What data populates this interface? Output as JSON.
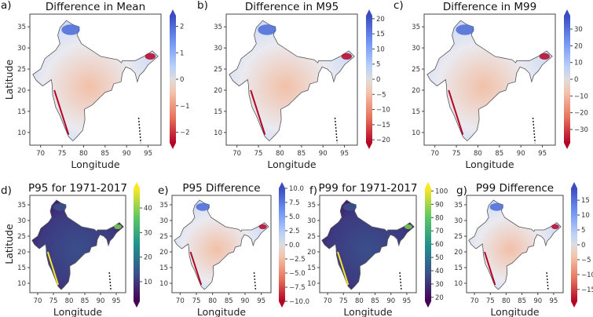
{
  "figure": {
    "x_axis_label": "Longitude",
    "y_axis_label": "Latitude",
    "lon_ticks": [
      70,
      75,
      80,
      85,
      90,
      95
    ],
    "lat_ticks": [
      10,
      15,
      20,
      25,
      30,
      35
    ],
    "lon_range": [
      67.5,
      98
    ],
    "lat_range": [
      7,
      38
    ]
  },
  "chart_data": [
    {
      "type": "heatmap",
      "panel": "a)",
      "title": "Difference in Mean",
      "colormap": "coolwarm_r",
      "clim": [
        -2.4,
        2.4
      ],
      "cbar_ticks": [
        -2,
        -1,
        0,
        1,
        2
      ],
      "cbar_labels": [
        "−2",
        "−1",
        "0",
        "1",
        "2"
      ],
      "show_ylabel": true,
      "show_xlabel": true
    },
    {
      "type": "heatmap",
      "panel": "b)",
      "title": "Difference in M95",
      "colormap": "coolwarm_r",
      "clim": [
        -21,
        21
      ],
      "cbar_ticks": [
        -20,
        -15,
        -10,
        -5,
        0,
        5,
        10,
        15,
        20
      ],
      "cbar_labels": [
        "−20",
        "−15",
        "−10",
        "−5",
        "0",
        "5",
        "10",
        "15",
        "20"
      ],
      "show_ylabel": false,
      "show_xlabel": true
    },
    {
      "type": "heatmap",
      "panel": "c)",
      "title": "Difference in M99",
      "colormap": "coolwarm_r",
      "clim": [
        -38,
        38
      ],
      "cbar_ticks": [
        -30,
        -20,
        -10,
        0,
        10,
        20,
        30
      ],
      "cbar_labels": [
        "−30",
        "−20",
        "−10",
        "0",
        "10",
        "20",
        "30"
      ],
      "show_ylabel": false,
      "show_xlabel": true
    },
    {
      "type": "heatmap",
      "panel": "d)",
      "title": "P95 for 1971-2017",
      "colormap": "viridis",
      "clim": [
        2,
        48
      ],
      "cbar_ticks": [
        10,
        20,
        30,
        40
      ],
      "cbar_labels": [
        "10",
        "20",
        "30",
        "40"
      ],
      "show_ylabel": true,
      "show_xlabel": true
    },
    {
      "type": "heatmap",
      "panel": "e)",
      "title": "P95 Difference",
      "colormap": "coolwarm_r",
      "clim": [
        -10,
        10
      ],
      "cbar_ticks": [
        -10,
        -7.5,
        -5,
        -2.5,
        0,
        2.5,
        5,
        7.5,
        10
      ],
      "cbar_labels": [
        "−10.0",
        "−7.5",
        "−5.0",
        "−2.5",
        "0.0",
        "2.5",
        "5.0",
        "7.5",
        "10.0"
      ],
      "show_ylabel": false,
      "show_xlabel": true
    },
    {
      "type": "heatmap",
      "panel": "f)",
      "title": "P99 for 1971-2017",
      "colormap": "viridis",
      "clim": [
        17,
        102
      ],
      "cbar_ticks": [
        20,
        30,
        40,
        50,
        60,
        70,
        80,
        90,
        100
      ],
      "cbar_labels": [
        "20",
        "30",
        "40",
        "50",
        "60",
        "70",
        "80",
        "90",
        "100"
      ],
      "show_ylabel": false,
      "show_xlabel": true
    },
    {
      "type": "heatmap",
      "panel": "g)",
      "title": "P99 Difference",
      "colormap": "coolwarm_r",
      "clim": [
        -19,
        19
      ],
      "cbar_ticks": [
        -15,
        -10,
        -5,
        0,
        5,
        10,
        15
      ],
      "cbar_labels": [
        "−15",
        "−10",
        "−5",
        "0",
        "5",
        "10",
        "15"
      ],
      "show_ylabel": false,
      "show_xlabel": true
    }
  ],
  "colors": {
    "diverging": [
      "#b40426",
      "#e7745b",
      "#f4c4ad",
      "#dddddd",
      "#b9d0f9",
      "#6f92f3",
      "#3b4cc0"
    ],
    "viridis": [
      "#440154",
      "#3b528b",
      "#21918c",
      "#5ec962",
      "#fde725"
    ],
    "frame": "#555555"
  }
}
